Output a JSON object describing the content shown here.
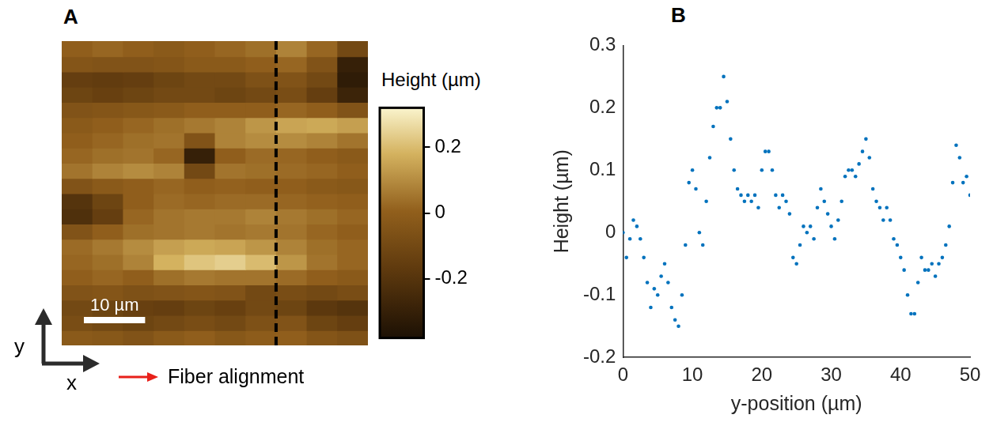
{
  "chart_data": [
    {
      "panel": "A",
      "type": "heatmap",
      "x": [
        2.5,
        7.5,
        12.5,
        17.5,
        22.5,
        27.5,
        32.5,
        37.5,
        42.5,
        47.5
      ],
      "y": [
        1.25,
        3.75,
        6.25,
        8.75,
        11.25,
        13.75,
        16.25,
        18.75,
        21.25,
        23.75,
        26.25,
        28.75,
        31.25,
        33.75,
        36.25,
        38.75,
        41.25,
        43.75,
        46.25,
        48.75
      ],
      "cells": [
        [
          -0.02,
          -0.03,
          -0.05,
          -0.02,
          0.0,
          -0.03,
          -0.01,
          0.0,
          -0.04,
          -0.06
        ],
        [
          -0.08,
          -0.1,
          -0.12,
          -0.1,
          -0.08,
          -0.1,
          -0.06,
          -0.05,
          -0.12,
          -0.15
        ],
        [
          -0.1,
          -0.12,
          -0.14,
          -0.15,
          -0.12,
          -0.14,
          -0.1,
          -0.12,
          -0.18,
          -0.2
        ],
        [
          -0.05,
          -0.04,
          -0.06,
          -0.05,
          -0.04,
          -0.05,
          -0.1,
          -0.08,
          -0.1,
          -0.08
        ],
        [
          0.0,
          0.02,
          0.0,
          0.04,
          0.06,
          0.05,
          0.05,
          0.03,
          0.0,
          -0.02
        ],
        [
          0.02,
          0.04,
          0.08,
          0.18,
          0.22,
          0.24,
          0.2,
          0.12,
          0.05,
          0.02
        ],
        [
          0.03,
          0.06,
          0.1,
          0.14,
          0.16,
          0.15,
          0.12,
          0.08,
          0.04,
          0.02
        ],
        [
          -0.05,
          0.0,
          0.04,
          0.05,
          0.06,
          0.05,
          0.06,
          0.05,
          0.02,
          0.0
        ],
        [
          -0.22,
          -0.15,
          0.02,
          0.05,
          0.06,
          0.06,
          0.08,
          0.06,
          0.04,
          0.02
        ],
        [
          -0.2,
          -0.12,
          0.0,
          0.03,
          0.02,
          0.03,
          0.03,
          0.02,
          0.01,
          0.0
        ],
        [
          -0.05,
          -0.02,
          0.0,
          0.02,
          0.0,
          0.01,
          0.0,
          0.0,
          -0.02,
          -0.03
        ],
        [
          0.05,
          0.08,
          0.1,
          0.08,
          -0.1,
          0.05,
          0.04,
          0.03,
          0.02,
          0.0
        ],
        [
          0.02,
          0.04,
          0.05,
          0.02,
          -0.3,
          0.0,
          0.03,
          0.02,
          0.0,
          -0.02
        ],
        [
          0.0,
          0.02,
          0.04,
          0.05,
          -0.05,
          0.08,
          0.1,
          0.1,
          0.08,
          0.05
        ],
        [
          -0.02,
          0.0,
          0.02,
          0.04,
          0.06,
          0.08,
          0.12,
          0.15,
          0.16,
          0.14
        ],
        [
          -0.05,
          -0.04,
          -0.03,
          -0.02,
          0.0,
          0.0,
          0.0,
          0.02,
          0.0,
          -0.05
        ],
        [
          -0.12,
          -0.14,
          -0.12,
          -0.1,
          -0.1,
          -0.12,
          -0.1,
          -0.08,
          -0.15,
          -0.28
        ],
        [
          -0.15,
          -0.16,
          -0.15,
          -0.12,
          -0.1,
          -0.1,
          -0.06,
          -0.05,
          -0.1,
          -0.32
        ],
        [
          -0.04,
          -0.05,
          -0.05,
          -0.04,
          -0.02,
          -0.02,
          0.0,
          0.02,
          -0.05,
          -0.3
        ],
        [
          0.0,
          0.02,
          0.0,
          -0.02,
          0.0,
          0.02,
          0.04,
          0.08,
          0.02,
          -0.1
        ]
      ],
      "xlim": [
        0,
        50
      ],
      "ylim": [
        0,
        50
      ],
      "tick_labels": false,
      "colorbar_title": "Height (µm)",
      "colorbar_range": [
        -0.38,
        0.32
      ],
      "colorbar_ticks": [
        -0.2,
        0,
        0.2
      ],
      "scale_bar": {
        "length": 10,
        "label": "10 µm"
      },
      "profile_x": 35,
      "axes_labels": {
        "x": "x",
        "y": "y"
      },
      "annotation": "Fiber alignment"
    },
    {
      "panel": "B",
      "type": "scatter",
      "x_label": "y-position (µm)",
      "y_label": "Height (µm)",
      "x": [
        0,
        0.5,
        1,
        1.5,
        2,
        2.5,
        3,
        3.5,
        4,
        4.5,
        5,
        5.5,
        6,
        6.5,
        7,
        7.5,
        8,
        8.5,
        9,
        9.5,
        10,
        10.5,
        11,
        11.5,
        12,
        12.5,
        13,
        13.5,
        14,
        14.5,
        15,
        15.5,
        16,
        16.5,
        17,
        17.5,
        18,
        18.5,
        19,
        19.5,
        20,
        20.5,
        21,
        21.5,
        22,
        22.5,
        23,
        23.5,
        24,
        24.5,
        25,
        25.5,
        26,
        26.5,
        27,
        27.5,
        28,
        28.5,
        29,
        29.5,
        30,
        30.5,
        31,
        31.5,
        32,
        32.5,
        33,
        33.5,
        34,
        34.5,
        35,
        35.5,
        36,
        36.5,
        37,
        37.5,
        38,
        38.5,
        39,
        39.5,
        40,
        40.5,
        41,
        41.5,
        42,
        42.5,
        43,
        43.5,
        44,
        44.5,
        45,
        45.5,
        46,
        46.5,
        47,
        47.5,
        48,
        48.5,
        49,
        49.5,
        50
      ],
      "values": [
        0.0,
        -0.04,
        -0.01,
        0.02,
        0.01,
        -0.01,
        -0.04,
        -0.08,
        -0.12,
        -0.09,
        -0.1,
        -0.07,
        -0.05,
        -0.08,
        -0.12,
        -0.14,
        -0.15,
        -0.1,
        -0.02,
        0.08,
        0.1,
        0.07,
        0.0,
        -0.02,
        0.05,
        0.12,
        0.17,
        0.2,
        0.2,
        0.25,
        0.21,
        0.15,
        0.1,
        0.07,
        0.06,
        0.05,
        0.06,
        0.05,
        0.06,
        0.04,
        0.1,
        0.13,
        0.13,
        0.1,
        0.06,
        0.04,
        0.06,
        0.05,
        0.03,
        -0.04,
        -0.05,
        -0.02,
        0.01,
        0.0,
        0.01,
        -0.01,
        0.04,
        0.07,
        0.05,
        0.03,
        0.01,
        -0.01,
        0.02,
        0.05,
        0.09,
        0.1,
        0.1,
        0.09,
        0.11,
        0.13,
        0.15,
        0.12,
        0.07,
        0.05,
        0.04,
        0.02,
        0.04,
        0.02,
        -0.01,
        -0.02,
        -0.04,
        -0.06,
        -0.1,
        -0.13,
        -0.13,
        -0.08,
        -0.04,
        -0.06,
        -0.06,
        -0.05,
        -0.07,
        -0.05,
        -0.04,
        -0.02,
        0.01,
        0.08,
        0.14,
        0.12,
        0.08,
        0.09,
        0.06
      ],
      "color": "#0072bd",
      "marker": "circle",
      "xlim": [
        0,
        50
      ],
      "xticks": [
        0,
        10,
        20,
        30,
        40,
        50
      ],
      "ylim": [
        -0.2,
        0.3
      ],
      "yticks": [
        -0.2,
        -0.1,
        0,
        0.1,
        0.2,
        0.3
      ],
      "grid": false
    }
  ]
}
